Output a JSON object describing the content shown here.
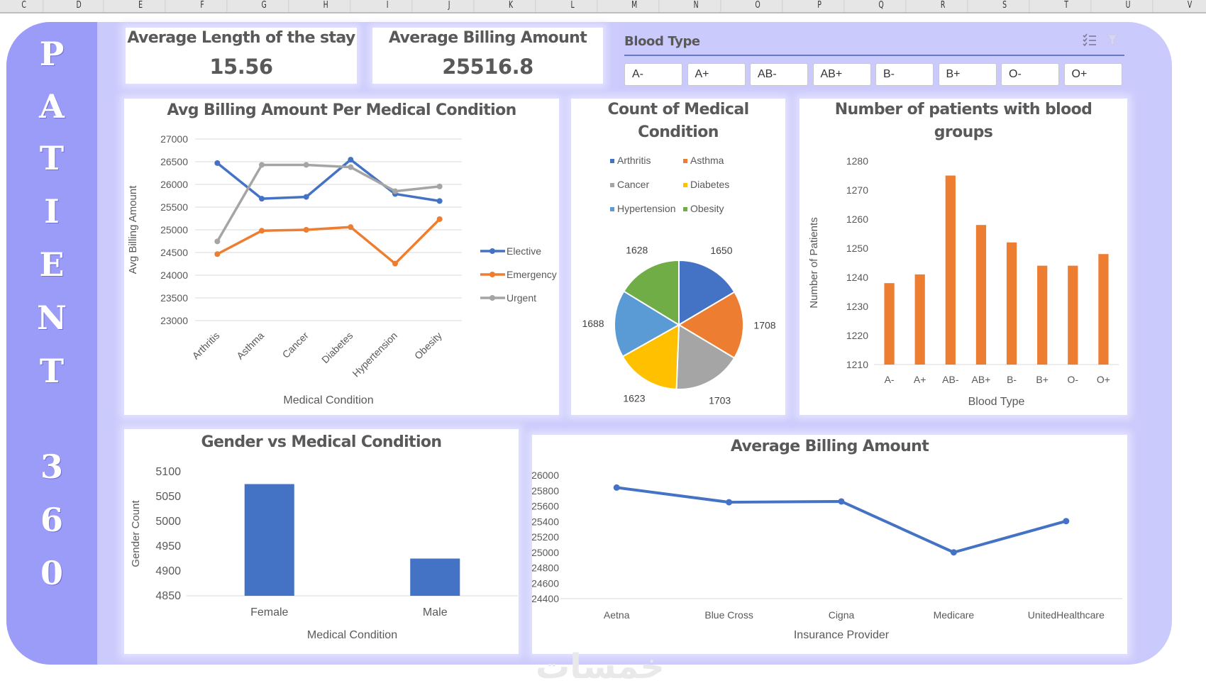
{
  "spreadsheet": {
    "column_headers": [
      "C",
      "D",
      "E",
      "F",
      "G",
      "H",
      "I",
      "J",
      "K",
      "L",
      "M",
      "N",
      "O",
      "P",
      "Q",
      "R",
      "S",
      "T",
      "U",
      "V"
    ]
  },
  "sidebar": {
    "title_letters": [
      "P",
      "A",
      "T",
      "I",
      "E",
      "N",
      "T",
      "3",
      "6",
      "0"
    ],
    "color": "#9b9cf8"
  },
  "kpis": {
    "avg_stay": {
      "label": "Average Length of the stay",
      "value": "15.56"
    },
    "avg_billing": {
      "label": "Average Billing Amount",
      "value": "25516.8"
    }
  },
  "slicer": {
    "title": "Blood Type",
    "icons": [
      "multi-select-icon",
      "clear-filter-icon"
    ],
    "options": [
      "A-",
      "A+",
      "AB-",
      "AB+",
      "B-",
      "B+",
      "O-",
      "O+"
    ]
  },
  "watermark": "خمسات",
  "chart_data": [
    {
      "id": "billing_per_condition",
      "type": "line",
      "title": "Avg Billing Amount Per Medical Condition",
      "xlabel": "Medical Condition",
      "ylabel": "Avg Billing Amount",
      "categories": [
        "Arthritis",
        "Asthma",
        "Cancer",
        "Diabetes",
        "Hypertension",
        "Obesity"
      ],
      "ylim": [
        23000,
        27000
      ],
      "yticks": [
        23000,
        23500,
        24000,
        24500,
        25000,
        25500,
        26000,
        26500,
        27000
      ],
      "grid": true,
      "legend": "right",
      "series": [
        {
          "name": "Elective",
          "color": "#4472c4",
          "values": [
            26470,
            25685,
            25725,
            26545,
            25790,
            25635
          ]
        },
        {
          "name": "Emergency",
          "color": "#ed7d31",
          "values": [
            24465,
            24980,
            25000,
            25060,
            24255,
            25235
          ]
        },
        {
          "name": "Urgent",
          "color": "#a5a5a5",
          "values": [
            24745,
            26430,
            26430,
            26380,
            25850,
            25955
          ]
        }
      ]
    },
    {
      "id": "condition_count",
      "type": "pie",
      "title": "Count of Medical Condition",
      "legend": "top",
      "categories": [
        "Arthritis",
        "Asthma",
        "Cancer",
        "Diabetes",
        "Hypertension",
        "Obesity"
      ],
      "values": [
        1650,
        1708,
        1703,
        1623,
        1688,
        1628
      ],
      "colors": [
        "#4472c4",
        "#ed7d31",
        "#a5a5a5",
        "#ffc000",
        "#5b9bd5",
        "#70ad47"
      ]
    },
    {
      "id": "blood_groups",
      "type": "bar",
      "title": "Number of patients with blood groups",
      "xlabel": "Blood Type",
      "ylabel": "Number of Patients",
      "categories": [
        "A-",
        "A+",
        "AB-",
        "AB+",
        "B-",
        "B+",
        "O-",
        "O+"
      ],
      "values": [
        1238,
        1241,
        1275,
        1258,
        1252,
        1244,
        1244,
        1248
      ],
      "ylim": [
        1210,
        1280
      ],
      "yticks": [
        1210,
        1220,
        1230,
        1240,
        1250,
        1260,
        1270,
        1280
      ],
      "color": "#ed7d31",
      "grid": false
    },
    {
      "id": "gender",
      "type": "bar",
      "title": "Gender vs Medical Condition",
      "xlabel": "Medical Condition",
      "ylabel": "Gender Count",
      "categories": [
        "Female",
        "Male"
      ],
      "values": [
        5075,
        4925
      ],
      "ylim": [
        4850,
        5100
      ],
      "yticks": [
        4850,
        4900,
        4950,
        5000,
        5050,
        5100
      ],
      "color": "#4472c4",
      "grid": false
    },
    {
      "id": "insurance",
      "type": "line",
      "title": "Average Billing Amount",
      "xlabel": "Insurance Provider",
      "ylabel": "",
      "categories": [
        "Aetna",
        "Blue Cross",
        "Cigna",
        "Medicare",
        "UnitedHealthcare"
      ],
      "ylim": [
        24400,
        26000
      ],
      "yticks": [
        24400,
        24600,
        24800,
        25000,
        25200,
        25400,
        25600,
        25800,
        26000
      ],
      "grid": false,
      "series": [
        {
          "name": "Average Billing Amount",
          "color": "#4472c4",
          "values": [
            25840,
            25650,
            25660,
            25000,
            25405
          ]
        }
      ]
    }
  ]
}
